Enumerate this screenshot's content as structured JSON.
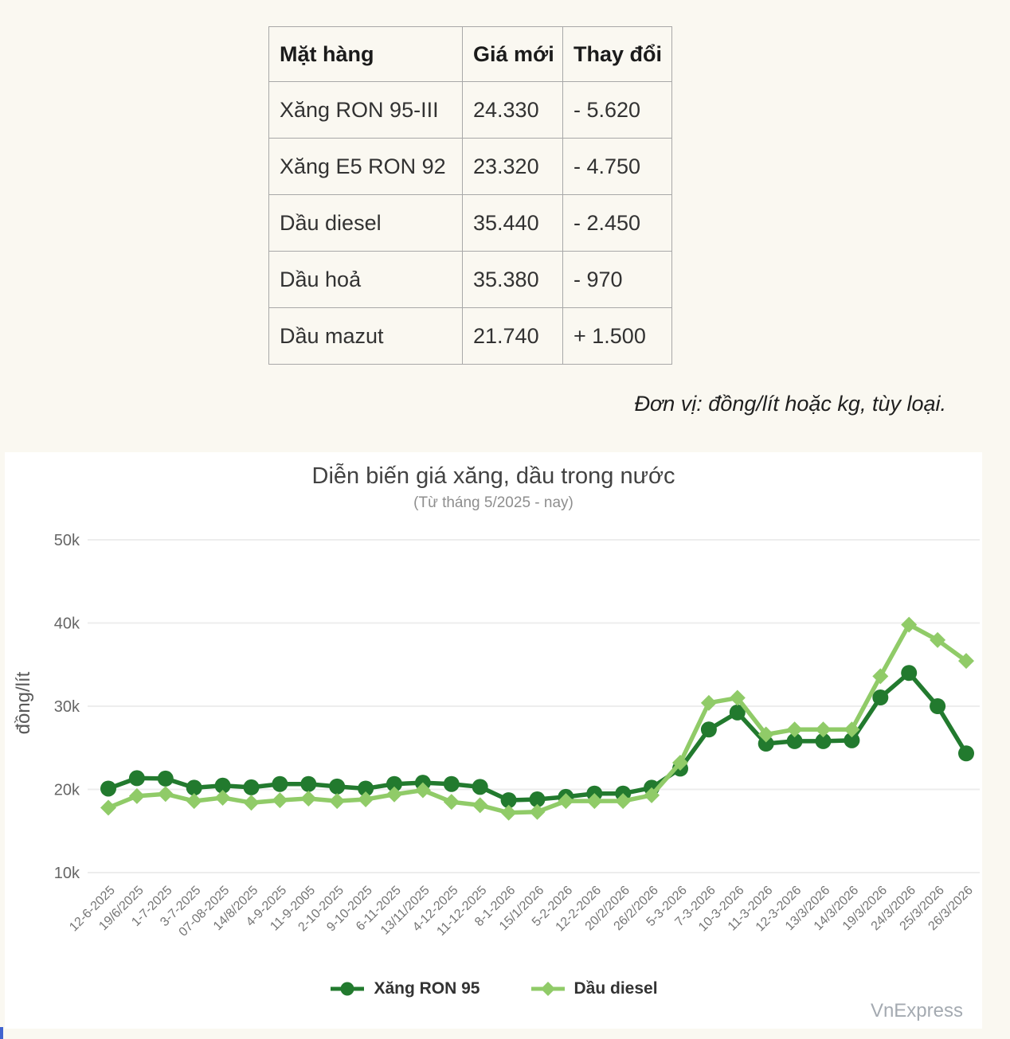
{
  "page": {
    "background_color": "#faf8f1",
    "panel_color": "#ffffff"
  },
  "table": {
    "headers": [
      "Mặt hàng",
      "Giá mới",
      "Thay đổi"
    ],
    "rows": [
      [
        "Xăng RON 95-III",
        "24.330",
        "- 5.620"
      ],
      [
        "Xăng E5 RON 92",
        "23.320",
        "- 4.750"
      ],
      [
        "Dầu diesel",
        "35.440",
        "- 2.450"
      ],
      [
        "Dầu hoả",
        "35.380",
        "- 970"
      ],
      [
        "Dầu mazut",
        "21.740",
        "+ 1.500"
      ]
    ]
  },
  "unit_note": "Đơn vị: đồng/lít hoặc kg, tùy loại.",
  "watermark": "VnExpress",
  "chart_data": {
    "type": "line",
    "title": "Diễn biến giá xăng, dầu trong nước",
    "subtitle": "(Từ tháng 5/2025 - nay)",
    "xlabel": "",
    "ylabel": "đồng/lít",
    "ylim": [
      10000,
      50000
    ],
    "yticks": [
      {
        "value": 10000,
        "label": "10k"
      },
      {
        "value": 20000,
        "label": "20k"
      },
      {
        "value": 30000,
        "label": "30k"
      },
      {
        "value": 40000,
        "label": "40k"
      },
      {
        "value": 50000,
        "label": "50k"
      }
    ],
    "grid": true,
    "legend_position": "bottom",
    "categories": [
      "12-6-2025",
      "19/6/2025",
      "1-7-2025",
      "3-7-2025",
      "07-08-2025",
      "14/8/2025",
      "4-9-2025",
      "11-9-2005",
      "2-10-2025",
      "9-10-2025",
      "6-11-2025",
      "13/11/2025",
      "4-12-2025",
      "11-12-2025",
      "8-1-2026",
      "15/1/2026",
      "5-2-2026",
      "12-2-2026",
      "20/2/2026",
      "26/2/2026",
      "5-3-2026",
      "7-3-2026",
      "10-3-2026",
      "11-3-2026",
      "12-3-2026",
      "13/3/2026",
      "14/3/2026",
      "19/3/2026",
      "24/3/2026",
      "25/3/2026",
      "26/3/2026"
    ],
    "series": [
      {
        "name": "Xăng RON 95",
        "marker": "circle",
        "color": "#227a2e",
        "values": [
          20100,
          21350,
          21300,
          20200,
          20450,
          20250,
          20650,
          20650,
          20350,
          20100,
          20650,
          20800,
          20650,
          20300,
          18700,
          18800,
          19100,
          19500,
          19500,
          20200,
          22500,
          27200,
          29250,
          25500,
          25800,
          25800,
          25900,
          31050,
          34000,
          30000,
          24330
        ]
      },
      {
        "name": "Dầu diesel",
        "marker": "diamond",
        "color": "#90cb68",
        "values": [
          17800,
          19200,
          19450,
          18600,
          19000,
          18400,
          18700,
          18900,
          18600,
          18800,
          19400,
          19900,
          18500,
          18100,
          17200,
          17300,
          18600,
          18600,
          18600,
          19300,
          23200,
          30400,
          31000,
          26600,
          27200,
          27200,
          27200,
          33600,
          39800,
          37950,
          35440
        ]
      }
    ],
    "tick_color": "#666666",
    "x_label_color": "#757575",
    "gridline_color": "#ededed"
  }
}
